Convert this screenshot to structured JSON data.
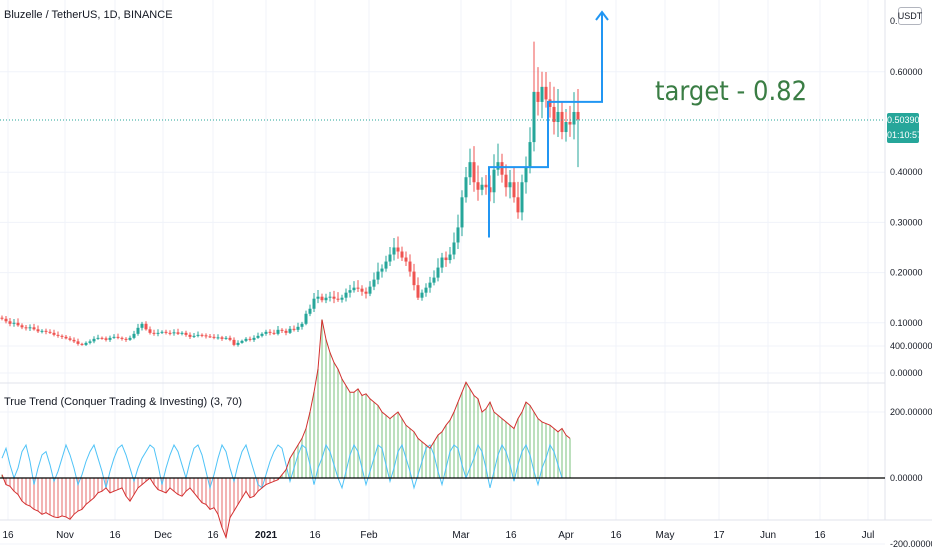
{
  "header": {
    "symbol_title": "Bluzelle / TetherUS, 1D, BINANCE",
    "currency": "USDT"
  },
  "indicator": {
    "title": "True Trend (Conquer Trading & Investing) (3, 70)"
  },
  "current_price": {
    "value": "0.50390",
    "countdown": "01:10:57"
  },
  "annotation": {
    "target_text": "target - 0.82"
  },
  "colors": {
    "up": "#26a69a",
    "down": "#ef5350",
    "annotation_line": "#2196f3",
    "target_text": "#3a7d44",
    "price_line": "#26a69a",
    "osc_up_fill": "#a5d6a7",
    "osc_down_fill": "#ef9a9a",
    "osc_line_red": "#d32f2f",
    "osc_line_blue": "#4fc3f7"
  },
  "chart_data": [
    {
      "type": "candlestick",
      "title": "Bluzelle / TetherUS, 1D, BINANCE",
      "x_ticks": [
        "16",
        "Nov",
        "16",
        "Dec",
        "16",
        "2021",
        "16",
        "Feb",
        "Mar",
        "16",
        "Apr",
        "16",
        "May",
        "17",
        "Jun",
        "16",
        "Jul"
      ],
      "y_ticks": [
        "0.00000",
        "0.10000",
        "0.20000",
        "0.30000",
        "0.40000",
        "0.60000"
      ],
      "ylim": [
        -0.01,
        0.7
      ],
      "grid": true,
      "series": [
        {
          "name": "price",
          "points": [
            [
              0,
              0.108
            ],
            [
              1,
              0.103
            ],
            [
              2,
              0.098
            ],
            [
              3,
              0.1
            ],
            [
              4,
              0.095
            ],
            [
              5,
              0.091
            ],
            [
              6,
              0.089
            ],
            [
              7,
              0.091
            ],
            [
              8,
              0.087
            ],
            [
              9,
              0.083
            ],
            [
              10,
              0.084
            ],
            [
              11,
              0.082
            ],
            [
              12,
              0.08
            ],
            [
              13,
              0.076
            ],
            [
              14,
              0.074
            ],
            [
              15,
              0.072
            ],
            [
              16,
              0.069
            ],
            [
              17,
              0.066
            ],
            [
              18,
              0.063
            ],
            [
              19,
              0.058
            ],
            [
              20,
              0.056
            ],
            [
              21,
              0.06
            ],
            [
              22,
              0.063
            ],
            [
              23,
              0.068
            ],
            [
              24,
              0.07
            ],
            [
              25,
              0.069
            ],
            [
              26,
              0.066
            ],
            [
              27,
              0.07
            ],
            [
              28,
              0.072
            ],
            [
              29,
              0.07
            ],
            [
              30,
              0.068
            ],
            [
              31,
              0.066
            ],
            [
              32,
              0.07
            ],
            [
              33,
              0.078
            ],
            [
              34,
              0.09
            ],
            [
              35,
              0.098
            ],
            [
              36,
              0.087
            ],
            [
              37,
              0.08
            ],
            [
              38,
              0.078
            ],
            [
              39,
              0.08
            ],
            [
              40,
              0.082
            ],
            [
              41,
              0.08
            ],
            [
              42,
              0.079
            ],
            [
              43,
              0.081
            ],
            [
              44,
              0.078
            ],
            [
              45,
              0.08
            ],
            [
              46,
              0.076
            ],
            [
              47,
              0.072
            ],
            [
              48,
              0.074
            ],
            [
              49,
              0.076
            ],
            [
              50,
              0.075
            ],
            [
              51,
              0.073
            ],
            [
              52,
              0.072
            ],
            [
              53,
              0.07
            ],
            [
              54,
              0.071
            ],
            [
              55,
              0.068
            ],
            [
              56,
              0.07
            ],
            [
              57,
              0.066
            ],
            [
              58,
              0.056
            ],
            [
              59,
              0.06
            ],
            [
              60,
              0.064
            ],
            [
              61,
              0.068
            ],
            [
              62,
              0.066
            ],
            [
              63,
              0.07
            ],
            [
              64,
              0.074
            ],
            [
              65,
              0.078
            ],
            [
              66,
              0.082
            ],
            [
              67,
              0.08
            ],
            [
              68,
              0.078
            ],
            [
              69,
              0.086
            ],
            [
              70,
              0.084
            ],
            [
              71,
              0.08
            ],
            [
              72,
              0.088
            ],
            [
              73,
              0.086
            ],
            [
              74,
              0.092
            ],
            [
              75,
              0.098
            ],
            [
              76,
              0.118
            ],
            [
              77,
              0.128
            ],
            [
              78,
              0.148
            ],
            [
              79,
              0.152
            ],
            [
              80,
              0.145
            ],
            [
              81,
              0.15
            ],
            [
              82,
              0.152
            ],
            [
              83,
              0.148
            ],
            [
              84,
              0.146
            ],
            [
              85,
              0.15
            ],
            [
              86,
              0.16
            ],
            [
              87,
              0.165
            ],
            [
              88,
              0.17
            ],
            [
              89,
              0.168
            ],
            [
              90,
              0.162
            ],
            [
              91,
              0.158
            ],
            [
              92,
              0.172
            ],
            [
              93,
              0.186
            ],
            [
              94,
              0.202
            ],
            [
              95,
              0.208
            ],
            [
              96,
              0.222
            ],
            [
              97,
              0.236
            ],
            [
              98,
              0.25
            ],
            [
              99,
              0.242
            ],
            [
              100,
              0.23
            ],
            [
              101,
              0.222
            ],
            [
              102,
              0.202
            ],
            [
              103,
              0.175
            ],
            [
              104,
              0.15
            ],
            [
              105,
              0.16
            ],
            [
              106,
              0.17
            ],
            [
              107,
              0.18
            ],
            [
              108,
              0.19
            ],
            [
              109,
              0.21
            ],
            [
              110,
              0.23
            ],
            [
              111,
              0.225
            ],
            [
              112,
              0.236
            ],
            [
              113,
              0.26
            ],
            [
              114,
              0.29
            ],
            [
              115,
              0.35
            ],
            [
              116,
              0.39
            ],
            [
              117,
              0.42
            ],
            [
              118,
              0.38
            ],
            [
              119,
              0.365
            ],
            [
              120,
              0.375
            ],
            [
              121,
              0.37
            ],
            [
              122,
              0.36
            ],
            [
              123,
              0.405
            ],
            [
              124,
              0.42
            ],
            [
              125,
              0.395
            ],
            [
              126,
              0.37
            ],
            [
              127,
              0.38
            ],
            [
              128,
              0.35
            ],
            [
              129,
              0.32
            ],
            [
              130,
              0.38
            ],
            [
              131,
              0.41
            ],
            [
              132,
              0.46
            ],
            [
              133,
              0.56
            ],
            [
              134,
              0.54
            ],
            [
              135,
              0.57
            ],
            [
              136,
              0.545
            ],
            [
              137,
              0.53
            ],
            [
              138,
              0.5
            ],
            [
              139,
              0.52
            ],
            [
              140,
              0.48
            ],
            [
              141,
              0.5
            ],
            [
              142,
              0.495
            ],
            [
              143,
              0.52
            ],
            [
              144,
              0.505
            ]
          ]
        }
      ],
      "annotations": [
        {
          "type": "step_arrow",
          "label": "target - 0.82",
          "levels": [
            0.41,
            0.54,
            0.82
          ]
        }
      ]
    },
    {
      "type": "oscillator",
      "title": "True Trend (Conquer Trading & Investing) (3, 70)",
      "y_ticks": [
        "400.00000",
        "200.00000",
        "0.00000",
        "-200.00000"
      ],
      "ylim": [
        -260,
        480
      ],
      "zero_line": true,
      "series": [
        {
          "name": "",
          "values": [
            10,
            -20,
            -25,
            -40,
            -50,
            -70,
            -80,
            -85,
            -95,
            -100,
            -110,
            -105,
            -112,
            -118,
            -120,
            -115,
            -118,
            -125,
            -110,
            -100,
            -95,
            -80,
            -70,
            -60,
            -45,
            -40,
            -30,
            -45,
            -40,
            -35,
            -30,
            -55,
            -70,
            -50,
            -30,
            -20,
            -10,
            0,
            -20,
            -35,
            -40,
            -45,
            -30,
            -40,
            -50,
            -55,
            -40,
            -30,
            -45,
            -60,
            -75,
            -80,
            -95,
            -90,
            -110,
            -150,
            -180,
            -120,
            -100,
            -80,
            -60,
            -40,
            -60,
            -55,
            -40,
            -30,
            -20,
            -15,
            -10,
            -5,
            10,
            25,
            60,
            80,
            100,
            120,
            150,
            200,
            260,
            330,
            480,
            420,
            380,
            350,
            330,
            300,
            280,
            260,
            260,
            270,
            250,
            255,
            240,
            230,
            220,
            200,
            190,
            180,
            190,
            200,
            180,
            160,
            150,
            140,
            120,
            110,
            100,
            90,
            110,
            130,
            140,
            160,
            175,
            200,
            230,
            260,
            290,
            270,
            250,
            240,
            200,
            210,
            230,
            200,
            190,
            180,
            170,
            160,
            150,
            180,
            200,
            230,
            220,
            200,
            180,
            170,
            165,
            160,
            150,
            140,
            150,
            130,
            120
          ]
        },
        {
          "name": "",
          "values": [
            60,
            90,
            40,
            0,
            30,
            80,
            100,
            50,
            -20,
            30,
            70,
            80,
            40,
            -10,
            20,
            60,
            100,
            70,
            30,
            -20,
            10,
            50,
            80,
            100,
            60,
            20,
            -30,
            20,
            60,
            90,
            100,
            70,
            30,
            -10,
            30,
            60,
            80,
            100,
            90,
            40,
            -20,
            30,
            70,
            100,
            80,
            40,
            0,
            50,
            90,
            100,
            70,
            20,
            -30,
            10,
            60,
            100,
            80,
            30,
            -10,
            40,
            80,
            100,
            60,
            20,
            -20,
            -30,
            10,
            50,
            80,
            100,
            90,
            40,
            -10,
            30,
            70,
            100,
            90,
            40,
            -20,
            30,
            60,
            100,
            80,
            40,
            0,
            -30,
            20,
            70,
            100,
            80,
            30,
            -20,
            20,
            60,
            100,
            90,
            40,
            -10,
            30,
            80,
            100,
            60,
            20,
            -30,
            10,
            50,
            90,
            100,
            70,
            20,
            -20,
            30,
            80,
            100,
            90,
            40,
            0,
            30,
            60,
            100,
            80,
            30,
            -30,
            20,
            70,
            100,
            80,
            40,
            -10,
            40,
            80,
            100,
            70,
            20,
            -20,
            30,
            60,
            100,
            80,
            40,
            0
          ]
        }
      ]
    }
  ]
}
